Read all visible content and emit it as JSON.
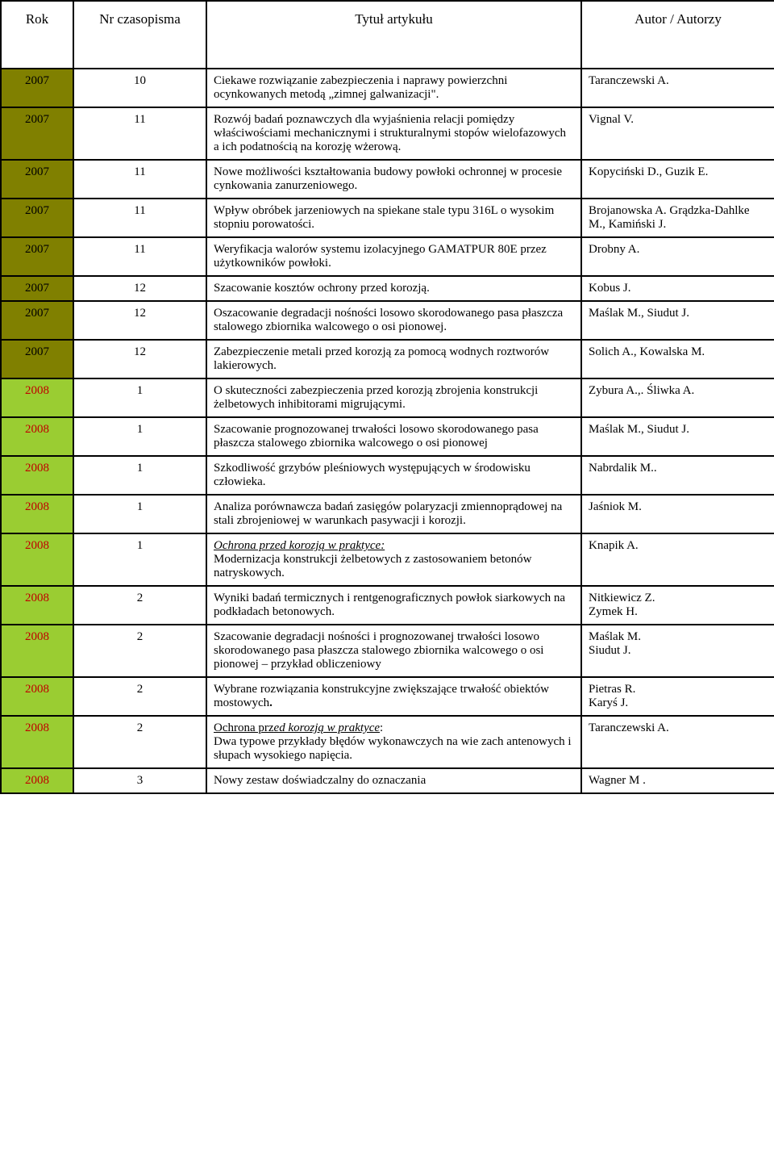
{
  "colors": {
    "olive": "#808000",
    "yellowgreen": "#9acd32",
    "red": "#c00000",
    "black": "#000000",
    "bg": "#ffffff",
    "border": "#000000"
  },
  "header": {
    "c1": "Rok",
    "c2": "Nr czasopisma",
    "c3": "Tytuł artykułu",
    "c4": "Autor / Autorzy"
  },
  "rows": [
    {
      "year": "2007",
      "year_color": "#000000",
      "year_bg": "#808000",
      "num": "10",
      "title_html": "Ciekawe rozwiązanie zabezpieczenia i naprawy powierzchni ocynkowanych metodą „zimnej galwanizacji\".",
      "author_html": "Taranczewski A."
    },
    {
      "year": "2007",
      "year_color": "#000000",
      "year_bg": "#808000",
      "num": "11",
      "title_html": "Rozwój badań poznawczych dla wyjaśnienia relacji pomiędzy właściwościami mechanicznymi i strukturalnymi stopów wielofazowych a ich podatnością na korozję wżerową.",
      "author_html": "Vignal V."
    },
    {
      "year": "2007",
      "year_color": "#000000",
      "year_bg": "#808000",
      "num": "11",
      "title_html": "Nowe możliwości kształtowania budowy powłoki ochronnej w procesie cynkowania zanurzeniowego.",
      "author_html": "Kopyciński D., Guzik E."
    },
    {
      "year": "2007",
      "year_color": "#000000",
      "year_bg": "#808000",
      "num": "11",
      "title_html": "Wpływ obróbek jarzeniowych na spiekane stale typu 316L o wysokim stopniu porowatości.",
      "author_html": "Brojanowska A. Grądzka-Dahlke M., Kamiński J."
    },
    {
      "year": "2007",
      "year_color": "#000000",
      "year_bg": "#808000",
      "num": "11",
      "title_html": "Weryfikacja walorów systemu izolacyjnego GAMATPUR 80E przez użytkowników powłoki.",
      "author_html": "Drobny A."
    },
    {
      "year": "2007",
      "year_color": "#000000",
      "year_bg": "#808000",
      "num": "12",
      "title_html": "Szacowanie kosztów ochrony przed korozją.",
      "author_html": "Kobus J."
    },
    {
      "year": "2007",
      "year_color": "#000000",
      "year_bg": "#808000",
      "num": "12",
      "title_html": "Oszacowanie degradacji nośności losowo skorodowanego pasa płaszcza stalowego zbiornika walcowego o osi pionowej.",
      "author_html": "Maślak M., Siudut J."
    },
    {
      "year": "2007",
      "year_color": "#000000",
      "year_bg": "#808000",
      "num": "12",
      "title_html": "Zabezpieczenie metali przed korozją za pomocą wodnych roztworów lakierowych.",
      "author_html": "Solich A., Kowalska M."
    },
    {
      "year": "2008",
      "year_color": "#c00000",
      "year_bg": "#9acd32",
      "num": "1",
      "title_html": "O skuteczności zabezpieczenia przed korozją zbrojenia konstrukcji żelbetowych inhibitorami migrującymi.",
      "author_html": " Zybura A.,. Śliwka A."
    },
    {
      "year": "2008",
      "year_color": "#c00000",
      "year_bg": "#9acd32",
      "num": "1",
      "title_html": "Szacowanie prognozowanej trwałości losowo skorodowanego pasa płaszcza stalowego zbiornika walcowego o osi pionowej",
      "author_html": "Maślak  M., Siudut J."
    },
    {
      "year": "2008",
      "year_color": "#c00000",
      "year_bg": "#9acd32",
      "num": "1",
      "title_html": "Szkodliwość grzybów pleśniowych występujących w środowisku człowieka.",
      "author_html": "Nabrdalik M.."
    },
    {
      "year": "2008",
      "year_color": "#c00000",
      "year_bg": "#9acd32",
      "num": "1",
      "title_html": "Analiza porównawcza badań zasięgów polaryzacji zmiennoprądowej na stali zbrojeniowej w warunkach pasywacji i korozji.",
      "author_html": " Jaśniok M."
    },
    {
      "year": "2008",
      "year_color": "#c00000",
      "year_bg": "#9acd32",
      "num": "1",
      "title_html": "<span class=\"u\"><i>Ochrona przed korozją w praktyce:</i></span><span class=\"br\"></span>Modernizacja konstrukcji żelbetowych z zastosowaniem betonów natryskowych.",
      "author_html": "Knapik  A."
    },
    {
      "year": "2008",
      "year_color": "#c00000",
      "year_bg": "#9acd32",
      "num": "2",
      "title_html": "Wyniki badań termicznych i rentgenograficznych powłok siarkowych na podkładach betonowych.",
      "author_html": "Nitkiewicz  Z.<br>Zymek  H."
    },
    {
      "year": "2008",
      "year_color": "#c00000",
      "year_bg": "#9acd32",
      "num": "2",
      "title_html": "Szacowanie degradacji nośności i prognozowanej trwałości losowo skorodowanego pasa płaszcza stalowego zbiornika walcowego o osi pionowej – przykład obliczeniowy",
      "author_html": "Maślak M.<br>Siudut J."
    },
    {
      "year": "2008",
      "year_color": "#c00000",
      "year_bg": "#9acd32",
      "num": "2",
      "title_html": "Wybrane rozwiązania konstrukcyjne zwiększające trwałość obiektów mostowych<b>.</b>",
      "author_html": "Pietras R.<br>Karyś J."
    },
    {
      "year": "2008",
      "year_color": "#c00000",
      "year_bg": "#9acd32",
      "num": "2",
      "title_html": "<span class=\"u\">Ochrona prz<i>ed korozją w praktyce</i></span>:<span class=\"br\"></span>Dwa typowe przykłady błędów wykonawczych na wie zach antenowych i słupach wysokiego napięcia.",
      "author_html": "Taranczewski A."
    },
    {
      "year": "2008",
      "year_color": "#c00000",
      "year_bg": "#9acd32",
      "num": "3",
      "title_html": "Nowy zestaw doświadczalny do oznaczania",
      "author_html": "Wagner M ."
    }
  ]
}
